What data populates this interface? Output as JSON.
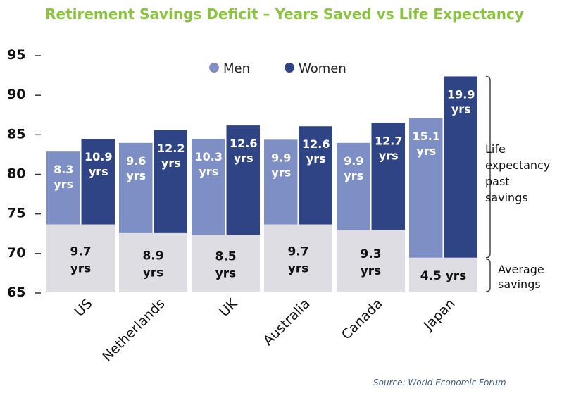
{
  "chart_data": {
    "type": "bar",
    "title": "Retirement Savings Deficit – Years Saved vs Life Expectancy",
    "source": "Source: World Economic Forum",
    "ylim": [
      65,
      95
    ],
    "yticks": [
      65,
      70,
      75,
      80,
      85,
      90,
      95
    ],
    "categories": [
      "US",
      "Netherlands",
      "UK",
      "Australia",
      "Canada",
      "Japan"
    ],
    "retirement_age": [
      73.5,
      72.4,
      72.2,
      73.5,
      72.8,
      69.3
    ],
    "series": [
      {
        "name": "Men",
        "color": "#7d8fc4",
        "life_expectancy": [
          82.7,
          83.8,
          84.3,
          84.2,
          83.8,
          86.9
        ],
        "labels": [
          "8.3 yrs",
          "9.6 yrs",
          "10.3 yrs",
          "9.9 yrs",
          "9.9 yrs",
          "15.1 yrs"
        ]
      },
      {
        "name": "Women",
        "color": "#2f4485",
        "life_expectancy": [
          84.3,
          85.4,
          86.0,
          85.9,
          86.3,
          92.2
        ],
        "labels": [
          "10.9 yrs",
          "12.2 yrs",
          "12.6 yrs",
          "12.6 yrs",
          "12.7 yrs",
          "19.9 yrs"
        ]
      }
    ],
    "savings_color": "#dddde3",
    "average_savings_labels": [
      "9.7 yrs",
      "8.9 yrs",
      "8.5 yrs",
      "9.7 yrs",
      "9.3 yrs",
      "4.5 yrs"
    ],
    "annotations": {
      "life_expectancy": [
        "Life",
        "expectancy",
        "past",
        "savings"
      ],
      "average_savings": [
        "Average",
        "savings"
      ]
    },
    "legend_position": "top"
  }
}
